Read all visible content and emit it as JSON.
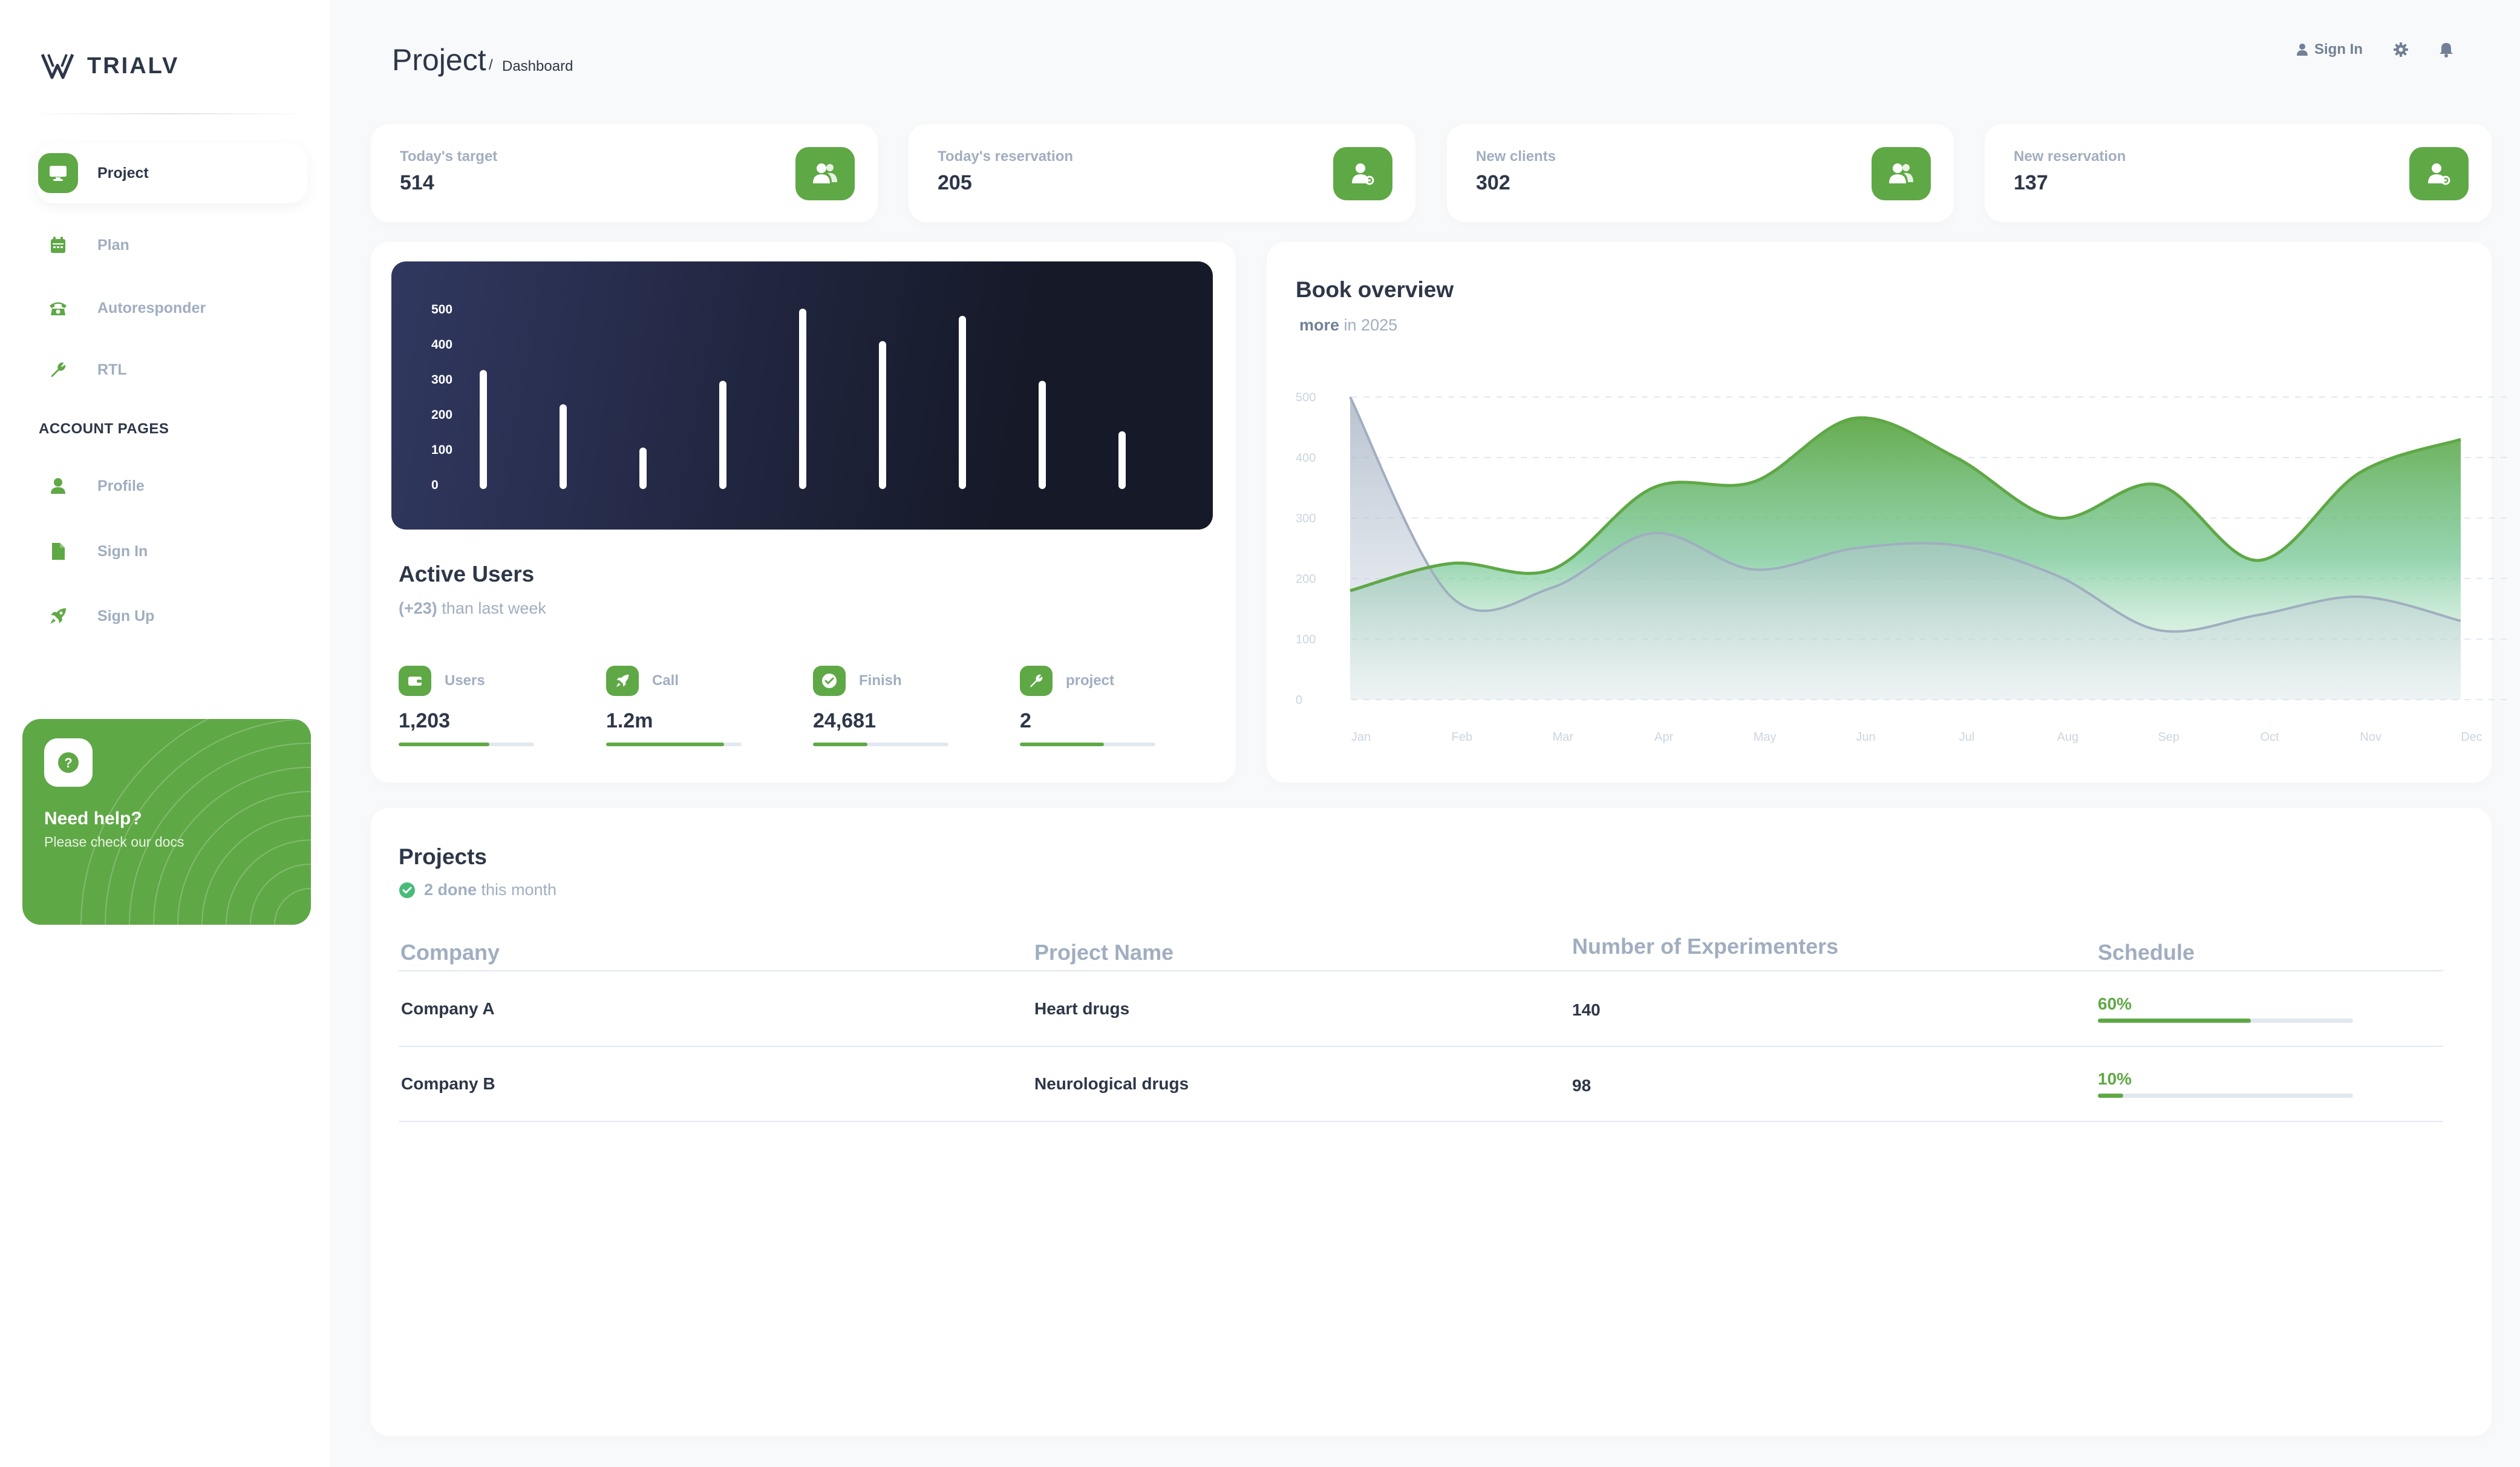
{
  "brand": {
    "name": "TRIALV"
  },
  "sidebar": {
    "items": [
      {
        "label": "Project",
        "icon": "monitor-icon",
        "active": true
      },
      {
        "label": "Plan",
        "icon": "calendar-icon"
      },
      {
        "label": "Autoresponder",
        "icon": "phone-icon"
      },
      {
        "label": "RTL",
        "icon": "wrench-icon"
      }
    ],
    "section_title": "ACCOUNT PAGES",
    "account_items": [
      {
        "label": "Profile",
        "icon": "person-icon"
      },
      {
        "label": "Sign In",
        "icon": "document-icon"
      },
      {
        "label": "Sign Up",
        "icon": "rocket-icon"
      }
    ],
    "help": {
      "title": "Need help?",
      "subtitle": "Please check our docs",
      "icon": "question-icon"
    }
  },
  "header": {
    "title": "Project",
    "separator": "/",
    "page": "Dashboard",
    "signin": "Sign In"
  },
  "stats": [
    {
      "label": "Today's target",
      "value": "514",
      "icon": "users-icon"
    },
    {
      "label": "Today's reservation",
      "value": "205",
      "icon": "user-gear-icon"
    },
    {
      "label": "New clients",
      "value": "302",
      "icon": "users-icon"
    },
    {
      "label": "New reservation",
      "value": "137",
      "icon": "user-gear-icon"
    }
  ],
  "active_users": {
    "title": "Active Users",
    "sub_bold": "(+23)",
    "sub_rest": " than last week",
    "metrics": [
      {
        "label": "Users",
        "value": "1,203",
        "progress": 0.67,
        "icon": "wallet-icon"
      },
      {
        "label": "Call",
        "value": "1.2m",
        "progress": 0.87,
        "icon": "rocket-icon"
      },
      {
        "label": "Finish",
        "value": "24,681",
        "progress": 0.4,
        "icon": "check-circle-icon"
      },
      {
        "label": "project",
        "value": "2",
        "progress": 0.62,
        "icon": "wrench-icon"
      }
    ]
  },
  "book_overview": {
    "title": "Book overview",
    "sub_bold": "more",
    "sub_rest": " in 2025"
  },
  "projects": {
    "title": "Projects",
    "sub_bold": "2 done",
    "sub_rest": " this month",
    "columns": [
      "Company",
      "Project Name",
      "Number of Experimenters",
      "Schedule"
    ],
    "rows": [
      {
        "company": "Company A",
        "project": "Heart drugs",
        "experimenters": "140",
        "schedule": "60%",
        "schedule_value": 0.6
      },
      {
        "company": "Company B",
        "project": "Neurological drugs",
        "experimenters": "98",
        "schedule": "10%",
        "schedule_value": 0.1
      }
    ]
  },
  "colors": {
    "accent": "#5fa846",
    "dark_chart_start": "#313860",
    "dark_chart_end": "#151928",
    "series_gray": "#a0aec0"
  },
  "chart_data": [
    {
      "type": "bar",
      "categories": [
        "",
        "",
        "",
        "",
        "",
        "",
        "",
        "",
        ""
      ],
      "values": [
        330,
        235,
        115,
        300,
        500,
        410,
        480,
        300,
        160
      ],
      "yticks": [
        "500",
        "400",
        "300",
        "200",
        "100",
        "0"
      ],
      "ylim": [
        0,
        500
      ]
    },
    {
      "type": "area",
      "categories": [
        "Jan",
        "Feb",
        "Mar",
        "Apr",
        "May",
        "Jun",
        "Jul",
        "Aug",
        "Sep",
        "Oct",
        "Nov",
        "Dec"
      ],
      "yticks": [
        "500",
        "400",
        "300",
        "200",
        "100",
        "0"
      ],
      "ylim": [
        0,
        500
      ],
      "series": [
        {
          "values": [
            180,
            225,
            215,
            350,
            360,
            465,
            400,
            300,
            355,
            230,
            375,
            430
          ],
          "color": "#5fa846"
        },
        {
          "values": [
            500,
            170,
            185,
            275,
            215,
            250,
            255,
            205,
            115,
            140,
            170,
            130
          ],
          "color": "#a0aec0"
        }
      ]
    }
  ]
}
